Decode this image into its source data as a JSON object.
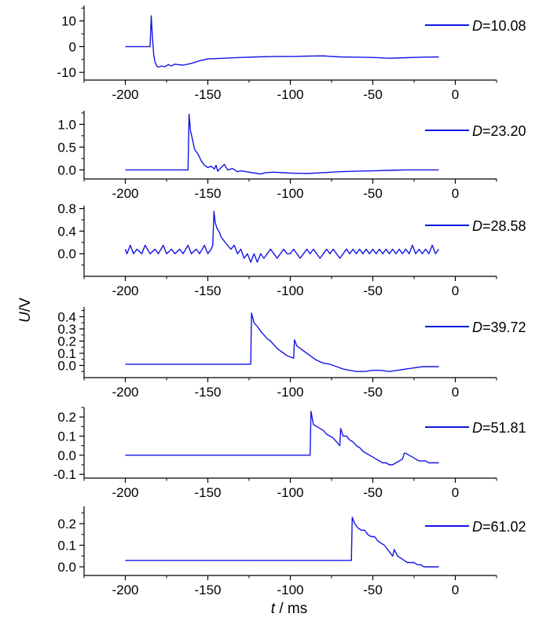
{
  "figure": {
    "ylabel_var": "U",
    "ylabel_unit": "/V",
    "xlabel_var": "t",
    "xlabel_unit": " / ms",
    "line_color": "#1414e6",
    "axis_color": "#000000"
  },
  "chart_data": [
    {
      "type": "line",
      "legend": {
        "var": "D",
        "value": "=10.08"
      },
      "legend_position": "top-right",
      "xlim": [
        -225,
        25
      ],
      "ylim": [
        -13,
        16
      ],
      "xticks": [
        -200,
        -150,
        -100,
        -50,
        0
      ],
      "xtick_labels": [
        "-200",
        "-150",
        "-100",
        "-50",
        "0"
      ],
      "yticks": [
        -10,
        0,
        10
      ],
      "ytick_labels": [
        "-10",
        "0",
        "10"
      ],
      "x": [
        -200,
        -185,
        -184.3,
        -183.6,
        -182.8,
        -182,
        -181,
        -180,
        -178,
        -176,
        -174,
        -172,
        -170,
        -168,
        -165,
        -162,
        -160,
        -155,
        -150,
        -140,
        -130,
        -120,
        -110,
        -100,
        -90,
        -80,
        -70,
        -60,
        -50,
        -40,
        -30,
        -20,
        -10
      ],
      "y": [
        0,
        0,
        12,
        4,
        -3,
        -6,
        -7.5,
        -8,
        -7.5,
        -7.8,
        -7,
        -7.5,
        -6.8,
        -7,
        -7.2,
        -6.8,
        -6.5,
        -5.5,
        -4.8,
        -4.5,
        -4.2,
        -4,
        -3.8,
        -3.8,
        -3.7,
        -3.6,
        -4,
        -4.1,
        -4.2,
        -4.5,
        -4.3,
        -4.1,
        -4
      ]
    },
    {
      "type": "line",
      "legend": {
        "var": "D",
        "value": "=23.20"
      },
      "legend_position": "top-right",
      "xlim": [
        -225,
        25
      ],
      "ylim": [
        -0.2,
        1.3
      ],
      "xticks": [
        -200,
        -150,
        -100,
        -50,
        0
      ],
      "xtick_labels": [
        "-200",
        "-150",
        "-100",
        "-50",
        "0"
      ],
      "yticks": [
        0,
        0.5,
        1.0
      ],
      "ytick_labels": [
        "0.0",
        "0.5",
        "1.0"
      ],
      "x": [
        -200,
        -180,
        -162,
        -161.4,
        -160.5,
        -159.5,
        -158,
        -156,
        -154,
        -152,
        -150,
        -148,
        -146,
        -145,
        -144,
        -142,
        -140,
        -138,
        -135,
        -132,
        -130,
        -125,
        -120,
        -118,
        -115,
        -110,
        -100,
        -90,
        -80,
        -70,
        -60,
        -50,
        -40,
        -30,
        -20,
        -10
      ],
      "y": [
        0,
        0,
        0,
        1.22,
        0.85,
        0.7,
        0.45,
        0.35,
        0.2,
        0.1,
        0.05,
        0.08,
        0.02,
        0.1,
        -0.03,
        0.05,
        0.12,
        0.0,
        0.03,
        -0.04,
        -0.02,
        -0.05,
        -0.08,
        -0.09,
        -0.06,
        -0.05,
        -0.07,
        -0.08,
        -0.06,
        -0.04,
        -0.03,
        -0.02,
        -0.01,
        0.0,
        0.0,
        0.0
      ]
    },
    {
      "type": "line",
      "legend": {
        "var": "D",
        "value": "=28.58"
      },
      "legend_position": "top-right",
      "xlim": [
        -225,
        25
      ],
      "ylim": [
        -0.4,
        0.85
      ],
      "xticks": [
        -200,
        -150,
        -100,
        -50,
        0
      ],
      "xtick_labels": [
        "-200",
        "-150",
        "-100",
        "-50",
        "0"
      ],
      "yticks": [
        0,
        0.4,
        0.8
      ],
      "ytick_labels": [
        "0.0",
        "0.4",
        "0.8"
      ],
      "x": [
        -200,
        -199,
        -197,
        -195,
        -193,
        -190,
        -188,
        -185,
        -182,
        -180,
        -177,
        -175,
        -172,
        -170,
        -167,
        -165,
        -162,
        -160,
        -157,
        -155,
        -152,
        -150,
        -148,
        -147,
        -146.3,
        -145.5,
        -144.5,
        -143,
        -142,
        -140,
        -138,
        -136,
        -134,
        -132,
        -130,
        -128,
        -126,
        -124,
        -122,
        -120,
        -118,
        -116,
        -114,
        -112,
        -110,
        -108,
        -106,
        -104,
        -102,
        -100,
        -98,
        -96,
        -94,
        -92,
        -90,
        -88,
        -86,
        -84,
        -82,
        -80,
        -78,
        -76,
        -74,
        -72,
        -70,
        -68,
        -66,
        -64,
        -62,
        -60,
        -58,
        -56,
        -54,
        -52,
        -50,
        -48,
        -46,
        -44,
        -42,
        -40,
        -38,
        -36,
        -34,
        -32,
        -30,
        -28,
        -26,
        -24,
        -22,
        -20,
        -18,
        -16,
        -14,
        -12,
        -10
      ],
      "y": [
        0.08,
        0.0,
        0.15,
        0.0,
        0.08,
        0.0,
        0.15,
        0.0,
        0.08,
        0.0,
        0.15,
        0.0,
        0.08,
        0.0,
        0.08,
        0.0,
        0.15,
        0.0,
        0.08,
        0.0,
        0.15,
        0.0,
        0.08,
        0.15,
        0.75,
        0.55,
        0.45,
        0.38,
        0.3,
        0.22,
        0.15,
        0.08,
        0.15,
        0.0,
        0.08,
        -0.08,
        0.0,
        -0.15,
        0.0,
        -0.15,
        0.0,
        -0.08,
        0.0,
        0.08,
        0.0,
        -0.08,
        0.0,
        0.08,
        0.0,
        0.0,
        0.08,
        0.0,
        -0.08,
        0.0,
        0.08,
        0.0,
        0.08,
        0.0,
        -0.08,
        0.0,
        0.08,
        0.0,
        0.08,
        0.0,
        -0.08,
        0.0,
        0.08,
        0.0,
        0.08,
        0.0,
        0.08,
        0.0,
        0.08,
        0.0,
        0.08,
        0.0,
        0.08,
        0.0,
        0.08,
        0.0,
        0.08,
        0.0,
        0.08,
        0.0,
        0.08,
        0.0,
        0.15,
        0.0,
        0.08,
        0.0,
        0.08,
        0.0,
        0.15,
        0.0,
        0.08
      ]
    },
    {
      "type": "line",
      "legend": {
        "var": "D",
        "value": "=39.72"
      },
      "legend_position": "top-right",
      "xlim": [
        -225,
        25
      ],
      "ylim": [
        -0.1,
        0.48
      ],
      "xticks": [
        -200,
        -150,
        -100,
        -50,
        0
      ],
      "xtick_labels": [
        "-200",
        "-150",
        "-100",
        "-50",
        "0"
      ],
      "yticks": [
        0,
        0.1,
        0.2,
        0.3,
        0.4
      ],
      "ytick_labels": [
        "0.0",
        "0.1",
        "0.2",
        "0.3",
        "0.4"
      ],
      "x": [
        -200,
        -180,
        -160,
        -140,
        -124,
        -123.5,
        -122,
        -120,
        -118,
        -116,
        -114,
        -112,
        -110,
        -108,
        -106,
        -104,
        -102,
        -100,
        -98,
        -97.5,
        -96,
        -94,
        -92,
        -90,
        -88,
        -85,
        -82,
        -80,
        -76,
        -72,
        -68,
        -64,
        -60,
        -55,
        -50,
        -45,
        -40,
        -35,
        -30,
        -25,
        -20,
        -15,
        -10
      ],
      "y": [
        0.01,
        0.01,
        0.01,
        0.01,
        0.01,
        0.43,
        0.35,
        0.32,
        0.28,
        0.25,
        0.22,
        0.2,
        0.17,
        0.14,
        0.12,
        0.1,
        0.08,
        0.07,
        0.06,
        0.21,
        0.16,
        0.14,
        0.12,
        0.1,
        0.08,
        0.05,
        0.03,
        0.02,
        0.01,
        -0.01,
        -0.03,
        -0.04,
        -0.05,
        -0.05,
        -0.04,
        -0.04,
        -0.05,
        -0.04,
        -0.03,
        -0.02,
        -0.01,
        -0.01,
        -0.01
      ]
    },
    {
      "type": "line",
      "legend": {
        "var": "D",
        "value": "=51.81"
      },
      "legend_position": "top-right",
      "xlim": [
        -225,
        25
      ],
      "ylim": [
        -0.12,
        0.25
      ],
      "xticks": [
        -200,
        -150,
        -100,
        -50,
        0
      ],
      "xtick_labels": [
        "-200",
        "-150",
        "-100",
        "-50",
        "0"
      ],
      "yticks": [
        -0.1,
        0,
        0.1,
        0.2
      ],
      "ytick_labels": [
        "-0.1",
        "0.0",
        "0.1",
        "0.2"
      ],
      "x": [
        -200,
        -190,
        -180,
        -170,
        -160,
        -150,
        -140,
        -130,
        -120,
        -110,
        -100,
        -90,
        -88,
        -87.5,
        -86,
        -84,
        -82,
        -80,
        -78,
        -76,
        -74,
        -72,
        -70,
        -69.5,
        -68,
        -66,
        -64,
        -62,
        -60,
        -58,
        -56,
        -54,
        -52,
        -50,
        -48,
        -46,
        -44,
        -42,
        -40,
        -38,
        -36,
        -34,
        -32,
        -31,
        -30,
        -28,
        -26,
        -24,
        -22,
        -20,
        -18,
        -16,
        -14,
        -12,
        -10
      ],
      "y": [
        0,
        0,
        0,
        0,
        0,
        0,
        0,
        0,
        0,
        0,
        0,
        0,
        0,
        0.23,
        0.16,
        0.15,
        0.14,
        0.13,
        0.11,
        0.1,
        0.09,
        0.07,
        0.05,
        0.14,
        0.1,
        0.1,
        0.08,
        0.07,
        0.05,
        0.04,
        0.02,
        0.01,
        0.0,
        -0.01,
        -0.02,
        -0.03,
        -0.04,
        -0.04,
        -0.05,
        -0.05,
        -0.04,
        -0.03,
        -0.02,
        0.01,
        0.01,
        0.0,
        -0.01,
        -0.02,
        -0.03,
        -0.03,
        -0.03,
        -0.04,
        -0.04,
        -0.04,
        -0.04
      ]
    },
    {
      "type": "line",
      "legend": {
        "var": "D",
        "value": "=61.02"
      },
      "legend_position": "top-right",
      "xlim": [
        -225,
        25
      ],
      "ylim": [
        -0.04,
        0.28
      ],
      "xticks": [
        -200,
        -150,
        -100,
        -50,
        0
      ],
      "xtick_labels": [
        "-200",
        "-150",
        "-100",
        "-50",
        "0"
      ],
      "yticks": [
        0,
        0.1,
        0.2
      ],
      "ytick_labels": [
        "0.0",
        "0.1",
        "0.2"
      ],
      "x": [
        -200,
        -190,
        -180,
        -170,
        -160,
        -150,
        -140,
        -130,
        -120,
        -110,
        -100,
        -90,
        -80,
        -70,
        -63,
        -62.5,
        -61,
        -59,
        -57,
        -55,
        -53,
        -51,
        -49,
        -47,
        -45,
        -43,
        -41,
        -39,
        -38,
        -37,
        -35,
        -33,
        -31,
        -29,
        -27,
        -25,
        -23,
        -21,
        -19,
        -17,
        -15,
        -13,
        -11,
        -10
      ],
      "y": [
        0.03,
        0.03,
        0.03,
        0.03,
        0.03,
        0.03,
        0.03,
        0.03,
        0.03,
        0.03,
        0.03,
        0.03,
        0.03,
        0.03,
        0.03,
        0.23,
        0.2,
        0.18,
        0.17,
        0.17,
        0.15,
        0.14,
        0.14,
        0.12,
        0.11,
        0.1,
        0.08,
        0.06,
        0.05,
        0.08,
        0.05,
        0.04,
        0.03,
        0.02,
        0.02,
        0.02,
        0.01,
        0.01,
        0.0,
        0.0,
        0.0,
        0.0,
        0.0,
        0.0
      ]
    }
  ]
}
